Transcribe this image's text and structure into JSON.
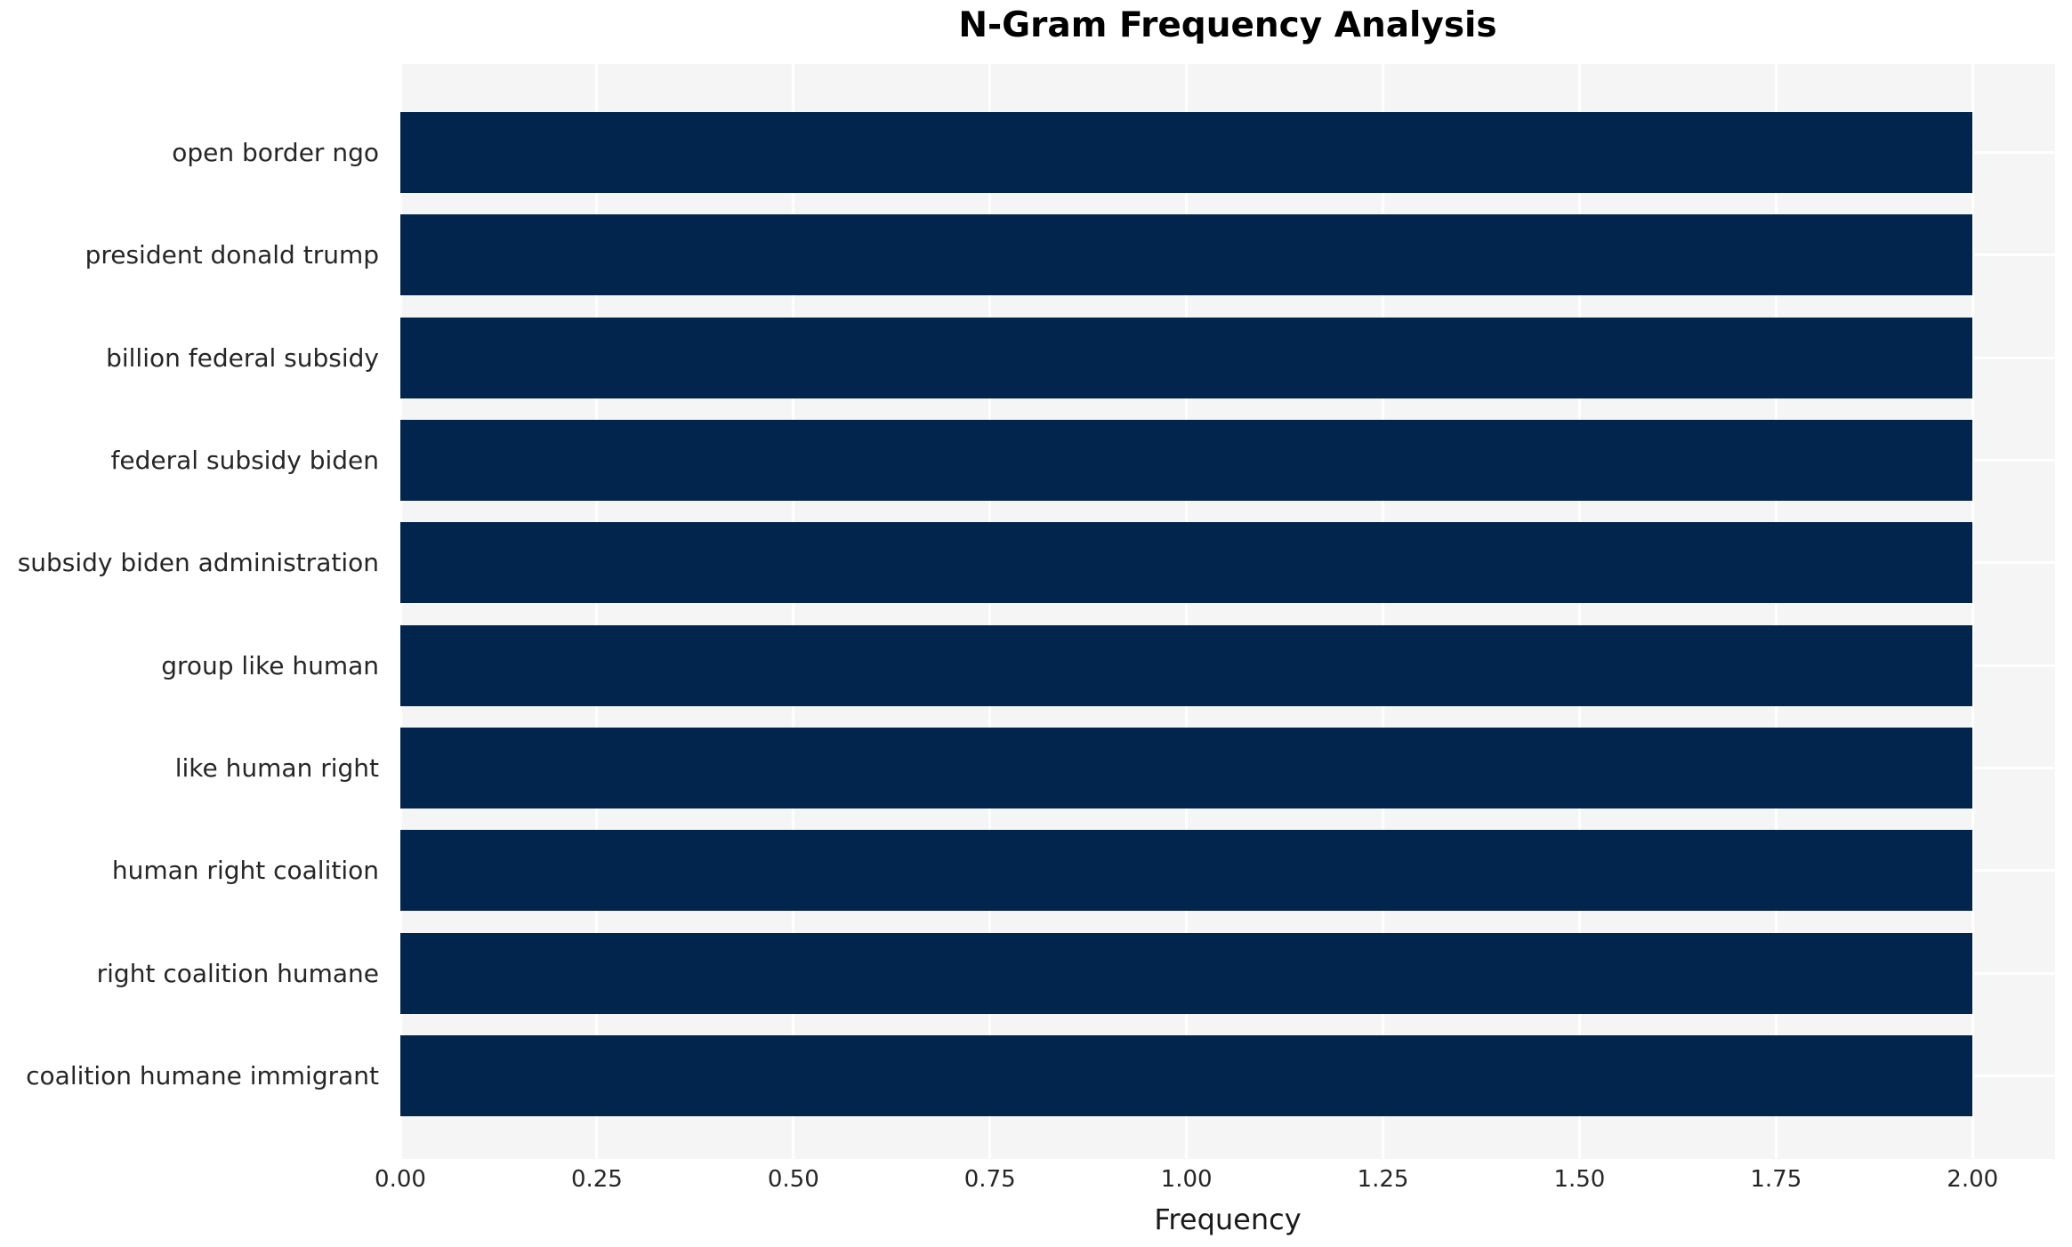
{
  "chart_data": {
    "type": "bar",
    "orientation": "horizontal",
    "title": "N-Gram Frequency Analysis",
    "xlabel": "Frequency",
    "ylabel": "",
    "categories": [
      "open border ngo",
      "president donald trump",
      "billion federal subsidy",
      "federal subsidy biden",
      "subsidy biden administration",
      "group like human",
      "like human right",
      "human right coalition",
      "right coalition humane",
      "coalition humane immigrant"
    ],
    "values": [
      2,
      2,
      2,
      2,
      2,
      2,
      2,
      2,
      2,
      2
    ],
    "xlim": [
      0,
      2.105
    ],
    "xticks": [
      0,
      0.25,
      0.5,
      0.75,
      1,
      1.25,
      1.5,
      1.75,
      2
    ],
    "xtick_labels": [
      "0.00",
      "0.25",
      "0.50",
      "0.75",
      "1.00",
      "1.25",
      "1.50",
      "1.75",
      "2.00"
    ],
    "grid": true,
    "legend": false
  },
  "colors": {
    "bar": "#02254e",
    "plot_bg": "#f5f5f6",
    "grid": "#ffffff",
    "tick_text": "#262626",
    "title_text": "#000000"
  }
}
